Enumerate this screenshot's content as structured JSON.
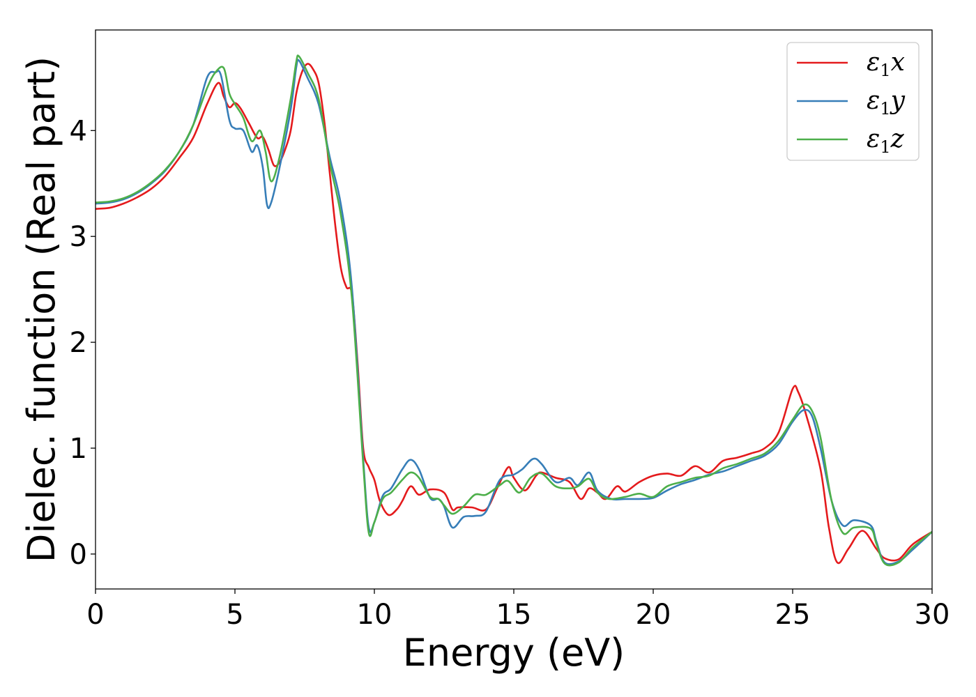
{
  "chart_data": {
    "type": "line",
    "xlabel": "Energy (eV)",
    "ylabel": "Dielec. function (Real part)",
    "xlim": [
      0,
      30
    ],
    "ylim": [
      -0.33,
      4.95
    ],
    "xticks": [
      0,
      5,
      10,
      15,
      20,
      25,
      30
    ],
    "yticks": [
      0,
      1,
      2,
      3,
      4
    ],
    "grid": false,
    "legend_position": "top-right",
    "series": [
      {
        "name": "ε1x",
        "legend_base": "ε",
        "legend_sub": "1",
        "legend_suffix": "x",
        "color": "#e41a1c",
        "points": [
          [
            0,
            3.26
          ],
          [
            0.5,
            3.27
          ],
          [
            1,
            3.31
          ],
          [
            1.5,
            3.37
          ],
          [
            2,
            3.45
          ],
          [
            2.5,
            3.57
          ],
          [
            3,
            3.74
          ],
          [
            3.5,
            3.93
          ],
          [
            4,
            4.25
          ],
          [
            4.4,
            4.45
          ],
          [
            4.6,
            4.32
          ],
          [
            4.8,
            4.22
          ],
          [
            5,
            4.26
          ],
          [
            5.2,
            4.21
          ],
          [
            5.5,
            4.07
          ],
          [
            5.8,
            3.93
          ],
          [
            6,
            3.94
          ],
          [
            6.2,
            3.82
          ],
          [
            6.4,
            3.67
          ],
          [
            6.6,
            3.7
          ],
          [
            6.8,
            3.82
          ],
          [
            7,
            4.0
          ],
          [
            7.2,
            4.35
          ],
          [
            7.4,
            4.55
          ],
          [
            7.6,
            4.63
          ],
          [
            7.8,
            4.58
          ],
          [
            8,
            4.45
          ],
          [
            8.2,
            4.1
          ],
          [
            8.4,
            3.6
          ],
          [
            8.6,
            3.1
          ],
          [
            8.8,
            2.7
          ],
          [
            9,
            2.52
          ],
          [
            9.2,
            2.45
          ],
          [
            9.4,
            1.8
          ],
          [
            9.6,
            1.0
          ],
          [
            9.8,
            0.82
          ],
          [
            10,
            0.7
          ],
          [
            10.2,
            0.5
          ],
          [
            10.5,
            0.37
          ],
          [
            10.8,
            0.42
          ],
          [
            11,
            0.5
          ],
          [
            11.3,
            0.64
          ],
          [
            11.6,
            0.56
          ],
          [
            12,
            0.61
          ],
          [
            12.5,
            0.58
          ],
          [
            12.8,
            0.42
          ],
          [
            13,
            0.44
          ],
          [
            13.5,
            0.44
          ],
          [
            14,
            0.42
          ],
          [
            14.4,
            0.62
          ],
          [
            14.8,
            0.82
          ],
          [
            15,
            0.72
          ],
          [
            15.4,
            0.6
          ],
          [
            15.8,
            0.74
          ],
          [
            16,
            0.77
          ],
          [
            16.5,
            0.72
          ],
          [
            17,
            0.68
          ],
          [
            17.4,
            0.52
          ],
          [
            17.7,
            0.62
          ],
          [
            18,
            0.58
          ],
          [
            18.3,
            0.52
          ],
          [
            18.7,
            0.64
          ],
          [
            19,
            0.59
          ],
          [
            19.5,
            0.68
          ],
          [
            20,
            0.74
          ],
          [
            20.5,
            0.76
          ],
          [
            21,
            0.74
          ],
          [
            21.5,
            0.83
          ],
          [
            22,
            0.77
          ],
          [
            22.5,
            0.88
          ],
          [
            23,
            0.91
          ],
          [
            23.5,
            0.95
          ],
          [
            24,
            1.0
          ],
          [
            24.5,
            1.15
          ],
          [
            25,
            1.56
          ],
          [
            25.2,
            1.53
          ],
          [
            25.5,
            1.3
          ],
          [
            26,
            0.8
          ],
          [
            26.3,
            0.25
          ],
          [
            26.6,
            -0.08
          ],
          [
            27,
            0.05
          ],
          [
            27.5,
            0.22
          ],
          [
            28,
            0.05
          ],
          [
            28.3,
            -0.04
          ],
          [
            28.8,
            -0.05
          ],
          [
            29.3,
            0.09
          ],
          [
            30,
            0.21
          ]
        ]
      },
      {
        "name": "ε1y",
        "legend_base": "ε",
        "legend_sub": "1",
        "legend_suffix": "y",
        "color": "#377eb8",
        "points": [
          [
            0,
            3.31
          ],
          [
            0.5,
            3.32
          ],
          [
            1,
            3.35
          ],
          [
            1.5,
            3.41
          ],
          [
            2,
            3.5
          ],
          [
            2.5,
            3.62
          ],
          [
            3,
            3.8
          ],
          [
            3.5,
            4.05
          ],
          [
            4,
            4.5
          ],
          [
            4.3,
            4.55
          ],
          [
            4.5,
            4.52
          ],
          [
            4.8,
            4.1
          ],
          [
            5,
            4.02
          ],
          [
            5.3,
            4.0
          ],
          [
            5.6,
            3.8
          ],
          [
            5.8,
            3.86
          ],
          [
            6,
            3.65
          ],
          [
            6.15,
            3.3
          ],
          [
            6.3,
            3.32
          ],
          [
            6.6,
            3.65
          ],
          [
            7,
            4.2
          ],
          [
            7.2,
            4.6
          ],
          [
            7.3,
            4.66
          ],
          [
            7.6,
            4.5
          ],
          [
            8,
            4.25
          ],
          [
            8.4,
            3.75
          ],
          [
            8.8,
            3.3
          ],
          [
            9.2,
            2.5
          ],
          [
            9.6,
            0.9
          ],
          [
            9.8,
            0.25
          ],
          [
            10,
            0.3
          ],
          [
            10.3,
            0.55
          ],
          [
            10.6,
            0.62
          ],
          [
            11,
            0.8
          ],
          [
            11.3,
            0.89
          ],
          [
            11.6,
            0.8
          ],
          [
            12,
            0.53
          ],
          [
            12.3,
            0.52
          ],
          [
            12.5,
            0.45
          ],
          [
            12.8,
            0.25
          ],
          [
            13.2,
            0.35
          ],
          [
            13.6,
            0.36
          ],
          [
            14,
            0.4
          ],
          [
            14.5,
            0.7
          ],
          [
            15,
            0.75
          ],
          [
            15.3,
            0.8
          ],
          [
            15.7,
            0.9
          ],
          [
            16,
            0.85
          ],
          [
            16.5,
            0.68
          ],
          [
            17,
            0.72
          ],
          [
            17.3,
            0.65
          ],
          [
            17.7,
            0.77
          ],
          [
            18,
            0.6
          ],
          [
            18.5,
            0.52
          ],
          [
            19,
            0.52
          ],
          [
            19.5,
            0.52
          ],
          [
            20,
            0.53
          ],
          [
            20.5,
            0.6
          ],
          [
            21,
            0.66
          ],
          [
            21.5,
            0.7
          ],
          [
            22,
            0.75
          ],
          [
            22.5,
            0.78
          ],
          [
            23,
            0.83
          ],
          [
            23.5,
            0.88
          ],
          [
            24,
            0.93
          ],
          [
            24.5,
            1.04
          ],
          [
            25,
            1.25
          ],
          [
            25.4,
            1.36
          ],
          [
            25.7,
            1.3
          ],
          [
            26,
            1.0
          ],
          [
            26.4,
            0.5
          ],
          [
            26.8,
            0.27
          ],
          [
            27.2,
            0.32
          ],
          [
            27.8,
            0.27
          ],
          [
            28,
            0.12
          ],
          [
            28.3,
            -0.08
          ],
          [
            28.8,
            -0.07
          ],
          [
            29.3,
            0.04
          ],
          [
            30,
            0.21
          ]
        ]
      },
      {
        "name": "ε1z",
        "legend_base": "ε",
        "legend_sub": "1",
        "legend_suffix": "z",
        "color": "#4daf4a",
        "points": [
          [
            0,
            3.32
          ],
          [
            0.5,
            3.33
          ],
          [
            1,
            3.36
          ],
          [
            1.5,
            3.42
          ],
          [
            2,
            3.51
          ],
          [
            2.5,
            3.63
          ],
          [
            3,
            3.8
          ],
          [
            3.5,
            4.05
          ],
          [
            4,
            4.4
          ],
          [
            4.3,
            4.55
          ],
          [
            4.6,
            4.59
          ],
          [
            4.8,
            4.35
          ],
          [
            5,
            4.25
          ],
          [
            5.3,
            4.12
          ],
          [
            5.6,
            3.9
          ],
          [
            5.9,
            4.0
          ],
          [
            6.1,
            3.8
          ],
          [
            6.3,
            3.52
          ],
          [
            6.6,
            3.75
          ],
          [
            7,
            4.3
          ],
          [
            7.2,
            4.65
          ],
          [
            7.3,
            4.7
          ],
          [
            7.6,
            4.55
          ],
          [
            8,
            4.3
          ],
          [
            8.4,
            3.7
          ],
          [
            8.8,
            3.2
          ],
          [
            9.2,
            2.4
          ],
          [
            9.6,
            0.85
          ],
          [
            9.8,
            0.2
          ],
          [
            10,
            0.3
          ],
          [
            10.3,
            0.52
          ],
          [
            10.6,
            0.58
          ],
          [
            11,
            0.7
          ],
          [
            11.3,
            0.77
          ],
          [
            11.6,
            0.72
          ],
          [
            12,
            0.54
          ],
          [
            12.3,
            0.52
          ],
          [
            12.5,
            0.46
          ],
          [
            12.8,
            0.38
          ],
          [
            13.2,
            0.45
          ],
          [
            13.6,
            0.56
          ],
          [
            14,
            0.56
          ],
          [
            14.5,
            0.65
          ],
          [
            14.8,
            0.69
          ],
          [
            15.2,
            0.58
          ],
          [
            15.6,
            0.72
          ],
          [
            16,
            0.76
          ],
          [
            16.5,
            0.64
          ],
          [
            17,
            0.62
          ],
          [
            17.3,
            0.64
          ],
          [
            17.7,
            0.71
          ],
          [
            18,
            0.58
          ],
          [
            18.4,
            0.52
          ],
          [
            19,
            0.54
          ],
          [
            19.5,
            0.57
          ],
          [
            20,
            0.54
          ],
          [
            20.5,
            0.64
          ],
          [
            21,
            0.68
          ],
          [
            21.5,
            0.72
          ],
          [
            22,
            0.74
          ],
          [
            22.5,
            0.81
          ],
          [
            23,
            0.85
          ],
          [
            23.5,
            0.9
          ],
          [
            24,
            0.95
          ],
          [
            24.5,
            1.07
          ],
          [
            25,
            1.27
          ],
          [
            25.4,
            1.41
          ],
          [
            25.7,
            1.35
          ],
          [
            26,
            1.1
          ],
          [
            26.4,
            0.5
          ],
          [
            26.8,
            0.2
          ],
          [
            27.2,
            0.25
          ],
          [
            27.8,
            0.24
          ],
          [
            28,
            0.1
          ],
          [
            28.3,
            -0.09
          ],
          [
            28.8,
            -0.08
          ],
          [
            29.3,
            0.06
          ],
          [
            30,
            0.21
          ]
        ]
      }
    ]
  }
}
